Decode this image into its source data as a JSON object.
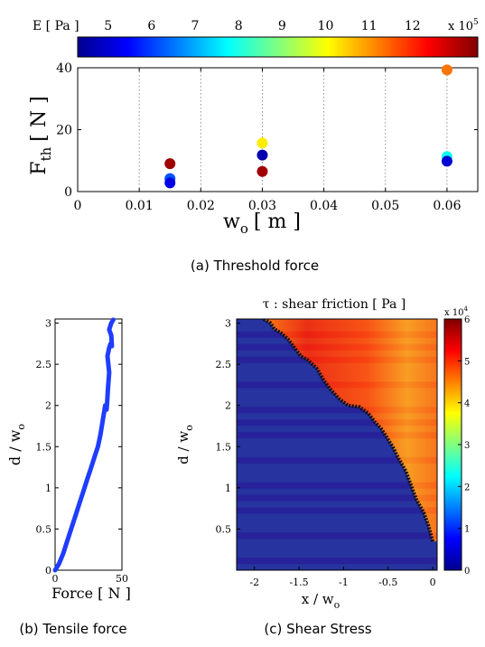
{
  "chart_data": [
    {
      "type": "scatter",
      "title": "",
      "xlabel": "w",
      "xlabel_sub": "o",
      "xlabel_units": "[ m ]",
      "ylabel": "F",
      "ylabel_sub": "th",
      "ylabel_units": "[ N ]",
      "xlim": [
        0,
        0.065
      ],
      "ylim": [
        0,
        40
      ],
      "xticks": [
        0,
        0.01,
        0.02,
        0.03,
        0.04,
        0.05,
        0.06
      ],
      "xtick_labels": [
        "0",
        "0.01",
        "0.02",
        "0.03",
        "0.04",
        "0.05",
        "0.06"
      ],
      "yticks": [
        0,
        20,
        40
      ],
      "ytick_labels": [
        "0",
        "20",
        "40"
      ],
      "grid_x": true,
      "colorbar": {
        "label": "E [ Pa ]",
        "exponent": "x 10",
        "exponent_power": "5",
        "range": [
          4.3,
          13.5
        ],
        "ticks": [
          5,
          6,
          7,
          8,
          9,
          10,
          11,
          12
        ],
        "tick_labels": [
          "5",
          "6",
          "7",
          "8",
          "9",
          "10",
          "11",
          "12"
        ],
        "colormap": "jet"
      },
      "points": [
        {
          "x": 0.015,
          "y": 9.0,
          "E": 13.2
        },
        {
          "x": 0.015,
          "y": 4.2,
          "E": 6.2
        },
        {
          "x": 0.015,
          "y": 2.8,
          "E": 5.2
        },
        {
          "x": 0.03,
          "y": 15.7,
          "E": 10.2
        },
        {
          "x": 0.03,
          "y": 11.8,
          "E": 4.6
        },
        {
          "x": 0.03,
          "y": 6.5,
          "E": 13.2
        },
        {
          "x": 0.06,
          "y": 39.3,
          "E": 11.3
        },
        {
          "x": 0.06,
          "y": 11.3,
          "E": 7.9
        },
        {
          "x": 0.06,
          "y": 9.8,
          "E": 5.0
        }
      ],
      "caption": "(a)  Threshold force"
    },
    {
      "type": "line",
      "title": "",
      "xlabel": "Force [ N ]",
      "ylabel": "d / w",
      "ylabel_sub": "o",
      "xlim": [
        0,
        50
      ],
      "ylim": [
        0,
        3.05
      ],
      "xticks": [
        0,
        50
      ],
      "xtick_labels": [
        "0",
        "50"
      ],
      "yticks": [
        0,
        0.5,
        1,
        1.5,
        2,
        2.5,
        3
      ],
      "ytick_labels": [
        "0",
        "0.5",
        "1",
        "1.5",
        "2",
        "2.5",
        "3"
      ],
      "series": [
        {
          "color": "#1f3dff",
          "points": [
            [
              0,
              0
            ],
            [
              3,
              0.08
            ],
            [
              6,
              0.2
            ],
            [
              9,
              0.35
            ],
            [
              12,
              0.5
            ],
            [
              15,
              0.65
            ],
            [
              18,
              0.8
            ],
            [
              21,
              0.95
            ],
            [
              24,
              1.1
            ],
            [
              27,
              1.25
            ],
            [
              30,
              1.4
            ],
            [
              32,
              1.5
            ],
            [
              34,
              1.65
            ],
            [
              35.5,
              1.8
            ],
            [
              36.5,
              1.9
            ],
            [
              37.5,
              2.0
            ],
            [
              38.5,
              1.95
            ],
            [
              39,
              2.05
            ],
            [
              39.5,
              2.2
            ],
            [
              40.5,
              2.4
            ],
            [
              39.2,
              2.6
            ],
            [
              40.5,
              2.7
            ],
            [
              41.5,
              2.75
            ],
            [
              42.5,
              2.72
            ],
            [
              42,
              2.85
            ],
            [
              40.5,
              2.92
            ],
            [
              42,
              3.0
            ],
            [
              43.5,
              3.04
            ]
          ]
        }
      ],
      "caption": "(b)  Tensile force"
    },
    {
      "type": "heatmap",
      "title": "τ : shear friction [ Pa ]",
      "xlabel": "x / w",
      "xlabel_sub": "o",
      "ylabel": "d / w",
      "ylabel_sub": "o",
      "xlim": [
        -2.2,
        0.05
      ],
      "ylim": [
        0,
        3.05
      ],
      "xticks": [
        -2,
        -1.5,
        -1,
        -0.5,
        0
      ],
      "xtick_labels": [
        "-2",
        "-1.5",
        "-1",
        "-0.5",
        "0"
      ],
      "yticks": [
        0.5,
        1,
        1.5,
        2,
        2.5,
        3
      ],
      "ytick_labels": [
        "0.5",
        "1",
        "1.5",
        "2",
        "2.5",
        "3"
      ],
      "colorbar": {
        "exponent": "x 10",
        "exponent_power": "4",
        "range": [
          0,
          6
        ],
        "ticks": [
          0,
          1,
          2,
          3,
          4,
          5,
          6
        ],
        "tick_labels": [
          "0",
          "1",
          "2",
          "3",
          "4",
          "5",
          "6"
        ],
        "colormap": "jet"
      },
      "front": [
        [
          0,
          0.35
        ],
        [
          -0.05,
          0.55
        ],
        [
          -0.1,
          0.7
        ],
        [
          -0.18,
          0.85
        ],
        [
          -0.25,
          1.05
        ],
        [
          -0.3,
          1.2
        ],
        [
          -0.38,
          1.35
        ],
        [
          -0.45,
          1.5
        ],
        [
          -0.52,
          1.62
        ],
        [
          -0.58,
          1.72
        ],
        [
          -0.65,
          1.8
        ],
        [
          -0.72,
          1.9
        ],
        [
          -0.82,
          1.98
        ],
        [
          -0.95,
          2.0
        ],
        [
          -1.05,
          2.08
        ],
        [
          -1.15,
          2.2
        ],
        [
          -1.22,
          2.3
        ],
        [
          -1.3,
          2.45
        ],
        [
          -1.4,
          2.55
        ],
        [
          -1.48,
          2.6
        ],
        [
          -1.55,
          2.7
        ],
        [
          -1.62,
          2.8
        ],
        [
          -1.7,
          2.88
        ],
        [
          -1.78,
          2.93
        ],
        [
          -1.82,
          3.0
        ],
        [
          -1.9,
          3.05
        ]
      ],
      "caption": "(c)  Shear Stress"
    }
  ]
}
